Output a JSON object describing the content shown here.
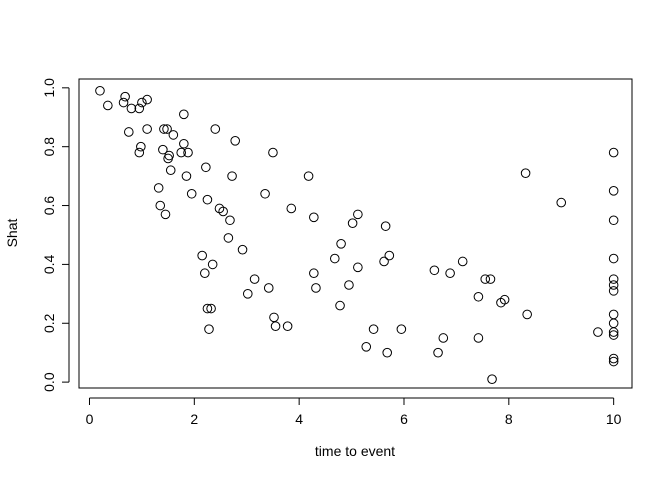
{
  "chart_data": {
    "type": "scatter",
    "title": "",
    "xlabel": "time to event",
    "ylabel": "Shat",
    "xlim": [
      -0.2,
      10.35
    ],
    "ylim": [
      -0.02,
      1.03
    ],
    "xticks": [
      0,
      2,
      4,
      6,
      8,
      10
    ],
    "yticks": [
      0.0,
      0.2,
      0.4,
      0.6,
      0.8,
      1.0
    ],
    "xtick_labels": [
      "0",
      "2",
      "4",
      "6",
      "8",
      "10"
    ],
    "ytick_labels": [
      "0.0",
      "0.2",
      "0.4",
      "0.6",
      "0.8",
      "1.0"
    ],
    "grid": false,
    "marker": "open-circle",
    "points": [
      [
        0.2,
        0.99
      ],
      [
        0.35,
        0.94
      ],
      [
        0.65,
        0.95
      ],
      [
        0.68,
        0.97
      ],
      [
        0.75,
        0.85
      ],
      [
        0.8,
        0.93
      ],
      [
        0.95,
        0.93
      ],
      [
        0.95,
        0.78
      ],
      [
        0.98,
        0.8
      ],
      [
        1.0,
        0.95
      ],
      [
        1.1,
        0.96
      ],
      [
        1.1,
        0.86
      ],
      [
        1.32,
        0.66
      ],
      [
        1.35,
        0.6
      ],
      [
        1.4,
        0.79
      ],
      [
        1.42,
        0.86
      ],
      [
        1.45,
        0.57
      ],
      [
        1.48,
        0.86
      ],
      [
        1.5,
        0.76
      ],
      [
        1.52,
        0.77
      ],
      [
        1.55,
        0.72
      ],
      [
        1.6,
        0.84
      ],
      [
        1.75,
        0.78
      ],
      [
        1.8,
        0.91
      ],
      [
        1.8,
        0.81
      ],
      [
        1.85,
        0.7
      ],
      [
        1.88,
        0.78
      ],
      [
        1.95,
        0.64
      ],
      [
        2.15,
        0.43
      ],
      [
        2.2,
        0.37
      ],
      [
        2.22,
        0.73
      ],
      [
        2.25,
        0.25
      ],
      [
        2.25,
        0.62
      ],
      [
        2.28,
        0.18
      ],
      [
        2.32,
        0.25
      ],
      [
        2.35,
        0.4
      ],
      [
        2.4,
        0.86
      ],
      [
        2.48,
        0.59
      ],
      [
        2.55,
        0.58
      ],
      [
        2.65,
        0.49
      ],
      [
        2.68,
        0.55
      ],
      [
        2.72,
        0.7
      ],
      [
        2.78,
        0.82
      ],
      [
        2.92,
        0.45
      ],
      [
        3.02,
        0.3
      ],
      [
        3.15,
        0.35
      ],
      [
        3.35,
        0.64
      ],
      [
        3.42,
        0.32
      ],
      [
        3.5,
        0.78
      ],
      [
        3.52,
        0.22
      ],
      [
        3.55,
        0.19
      ],
      [
        3.78,
        0.19
      ],
      [
        3.85,
        0.59
      ],
      [
        4.18,
        0.7
      ],
      [
        4.28,
        0.37
      ],
      [
        4.28,
        0.56
      ],
      [
        4.32,
        0.32
      ],
      [
        4.68,
        0.42
      ],
      [
        4.78,
        0.26
      ],
      [
        4.8,
        0.47
      ],
      [
        4.95,
        0.33
      ],
      [
        5.02,
        0.54
      ],
      [
        5.12,
        0.57
      ],
      [
        5.12,
        0.39
      ],
      [
        5.28,
        0.12
      ],
      [
        5.42,
        0.18
      ],
      [
        5.62,
        0.41
      ],
      [
        5.65,
        0.53
      ],
      [
        5.68,
        0.1
      ],
      [
        5.72,
        0.43
      ],
      [
        5.95,
        0.18
      ],
      [
        6.58,
        0.38
      ],
      [
        6.65,
        0.1
      ],
      [
        6.75,
        0.15
      ],
      [
        6.88,
        0.37
      ],
      [
        7.12,
        0.41
      ],
      [
        7.42,
        0.29
      ],
      [
        7.42,
        0.15
      ],
      [
        7.55,
        0.35
      ],
      [
        7.65,
        0.35
      ],
      [
        7.68,
        0.01
      ],
      [
        7.85,
        0.27
      ],
      [
        7.92,
        0.28
      ],
      [
        8.32,
        0.71
      ],
      [
        8.35,
        0.23
      ],
      [
        9.0,
        0.61
      ],
      [
        9.7,
        0.17
      ],
      [
        10.0,
        0.78
      ],
      [
        10.0,
        0.65
      ],
      [
        10.0,
        0.55
      ],
      [
        10.0,
        0.42
      ],
      [
        10.0,
        0.35
      ],
      [
        10.0,
        0.33
      ],
      [
        10.0,
        0.31
      ],
      [
        10.0,
        0.23
      ],
      [
        10.0,
        0.2
      ],
      [
        10.0,
        0.17
      ],
      [
        10.0,
        0.16
      ],
      [
        10.0,
        0.08
      ],
      [
        10.0,
        0.07
      ]
    ]
  }
}
